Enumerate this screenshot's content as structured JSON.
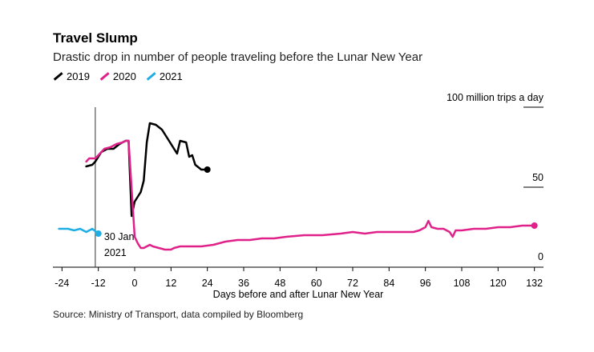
{
  "header": {
    "title": "Travel Slump",
    "subtitle": "Drastic drop in number of people traveling before the Lunar New Year"
  },
  "legend": [
    {
      "label": "2019",
      "color": "#000000"
    },
    {
      "label": "2020",
      "color": "#e0218a"
    },
    {
      "label": "2021",
      "color": "#1eaee4"
    }
  ],
  "source": "Source: Ministry of Transport, data compiled by Bloomberg",
  "chart_data": {
    "type": "line",
    "title": "Travel Slump",
    "subtitle": "Drastic drop in number of people traveling before the Lunar New Year",
    "xlabel": "Days before and after Lunar New Year",
    "ylabel": "100 million trips a day",
    "xlim": [
      -27,
      135
    ],
    "ylim": [
      0,
      100
    ],
    "x_ticks": [
      -24,
      -12,
      0,
      12,
      24,
      36,
      48,
      60,
      72,
      84,
      96,
      108,
      120,
      132
    ],
    "y_ticks": [
      {
        "value": 0,
        "label": "0"
      },
      {
        "value": 50,
        "label": "50"
      },
      {
        "value": 100,
        "label": "100 million trips a day"
      }
    ],
    "grid": false,
    "series": [
      {
        "name": "2019",
        "color": "#000000",
        "end_marker": true,
        "points": [
          [
            -16,
            63
          ],
          [
            -14,
            64
          ],
          [
            -13,
            66
          ],
          [
            -11,
            72
          ],
          [
            -9,
            74
          ],
          [
            -7,
            74
          ],
          [
            -5,
            77
          ],
          [
            -3,
            79
          ],
          [
            -2,
            79
          ],
          [
            -1,
            32
          ],
          [
            0,
            41
          ],
          [
            2,
            47
          ],
          [
            3,
            54
          ],
          [
            4,
            78
          ],
          [
            5,
            90
          ],
          [
            7,
            89
          ],
          [
            9,
            86
          ],
          [
            11,
            80
          ],
          [
            13,
            74
          ],
          [
            14,
            71
          ],
          [
            15,
            79
          ],
          [
            17,
            78
          ],
          [
            18,
            69
          ],
          [
            19,
            70
          ],
          [
            20,
            64
          ],
          [
            22,
            61
          ],
          [
            24,
            61
          ]
        ]
      },
      {
        "name": "2020",
        "color": "#e0218a",
        "end_marker": true,
        "points": [
          [
            -16,
            66
          ],
          [
            -15,
            68
          ],
          [
            -13,
            68
          ],
          [
            -12,
            70
          ],
          [
            -10,
            74
          ],
          [
            -8,
            75
          ],
          [
            -6,
            77
          ],
          [
            -4,
            78
          ],
          [
            -3,
            79
          ],
          [
            -2,
            79
          ],
          [
            0,
            19
          ],
          [
            1,
            15
          ],
          [
            2,
            12
          ],
          [
            3,
            12
          ],
          [
            4,
            13
          ],
          [
            5,
            14
          ],
          [
            6,
            13
          ],
          [
            8,
            12
          ],
          [
            10,
            11
          ],
          [
            12,
            11
          ],
          [
            13,
            12
          ],
          [
            15,
            13
          ],
          [
            18,
            13
          ],
          [
            22,
            13
          ],
          [
            26,
            14
          ],
          [
            30,
            16
          ],
          [
            34,
            17
          ],
          [
            38,
            17
          ],
          [
            42,
            18
          ],
          [
            46,
            18
          ],
          [
            50,
            19
          ],
          [
            56,
            20
          ],
          [
            62,
            20
          ],
          [
            68,
            21
          ],
          [
            72,
            22
          ],
          [
            76,
            21
          ],
          [
            80,
            22
          ],
          [
            84,
            22
          ],
          [
            88,
            22
          ],
          [
            92,
            22
          ],
          [
            94,
            23
          ],
          [
            96,
            25
          ],
          [
            97,
            29
          ],
          [
            98,
            25
          ],
          [
            100,
            24
          ],
          [
            102,
            24
          ],
          [
            104,
            22
          ],
          [
            105,
            19
          ],
          [
            106,
            23
          ],
          [
            108,
            23
          ],
          [
            112,
            24
          ],
          [
            116,
            24
          ],
          [
            120,
            25
          ],
          [
            124,
            25
          ],
          [
            128,
            26
          ],
          [
            132,
            26
          ]
        ]
      },
      {
        "name": "2021",
        "color": "#1eaee4",
        "end_marker": true,
        "points": [
          [
            -25,
            24
          ],
          [
            -22,
            24
          ],
          [
            -20,
            23
          ],
          [
            -18,
            24
          ],
          [
            -16,
            22
          ],
          [
            -14,
            24
          ],
          [
            -12,
            21
          ]
        ]
      }
    ],
    "annotations": [
      {
        "x": -13,
        "text": "30 Jan.",
        "line2": "2021",
        "type": "vertical-line"
      }
    ]
  }
}
